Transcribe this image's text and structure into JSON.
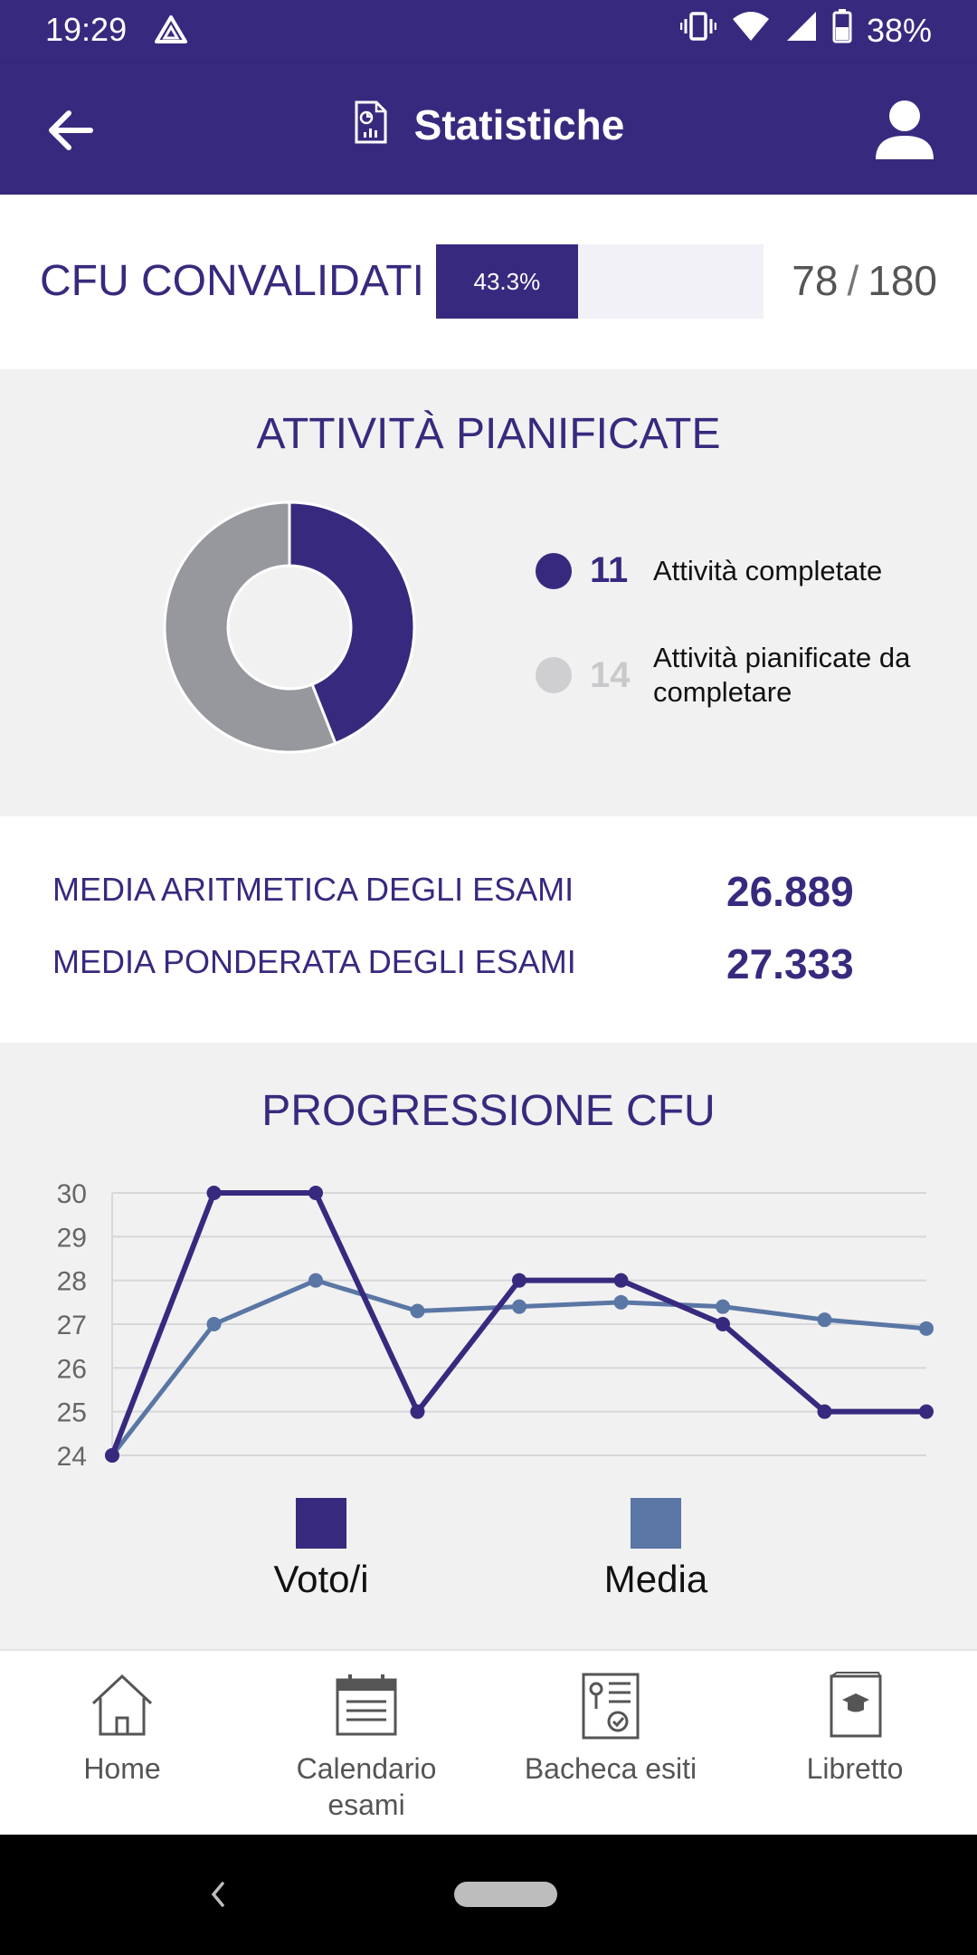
{
  "status_bar": {
    "time": "19:29",
    "battery": "38%",
    "icons": [
      "drive-icon",
      "vibrate-icon",
      "wifi-icon",
      "signal-icon",
      "battery-icon"
    ]
  },
  "app_bar": {
    "title": "Statistiche",
    "back_icon": "arrow-left-icon",
    "title_icon": "report-icon",
    "user_icon": "user-icon"
  },
  "cfu": {
    "label": "CFU CONVALIDATI",
    "percent_label": "43.3%",
    "progress_fraction": 0.433,
    "completed": "78",
    "separator": "/",
    "total": "180"
  },
  "activities": {
    "title": "ATTIVITÀ PIANIFICATE",
    "completed_count": "11",
    "completed_label": "Attività completate",
    "remaining_count": "14",
    "remaining_label": "Attività pianificate da completare",
    "completed_value": 11,
    "remaining_value": 14,
    "completed_color": "#372a7e",
    "remaining_color": "#96989e"
  },
  "averages": {
    "arithmetic_label": "MEDIA ARITMETICA DEGLI ESAMI",
    "arithmetic_value": "26.889",
    "weighted_label": "MEDIA PONDERATA DEGLI ESAMI",
    "weighted_value": "27.333"
  },
  "progression": {
    "title": "PROGRESSIONE CFU"
  },
  "chart_data": {
    "type": "line",
    "title": "PROGRESSIONE CFU",
    "x": [
      1,
      2,
      3,
      4,
      5,
      6,
      7,
      8,
      9
    ],
    "ylim": [
      24,
      30
    ],
    "yticks": [
      "30",
      "29",
      "28",
      "27",
      "26",
      "25",
      "24"
    ],
    "grid": true,
    "legend_position": "bottom",
    "series": [
      {
        "name": "Voto/i",
        "color": "#372a7e",
        "values": [
          24,
          30,
          30,
          25,
          28,
          28,
          27,
          25,
          25
        ]
      },
      {
        "name": "Media",
        "color": "#5a76a4",
        "values": [
          24,
          27,
          28,
          27.3,
          27.4,
          27.5,
          27.4,
          27.1,
          26.9
        ]
      }
    ]
  },
  "bottom_nav": {
    "items": [
      {
        "label": "Home",
        "icon": "home-icon"
      },
      {
        "label": "Calendario esami",
        "icon": "calendar-icon"
      },
      {
        "label": "Bacheca esiti",
        "icon": "results-board-icon"
      },
      {
        "label": "Libretto",
        "icon": "booklet-icon"
      }
    ]
  }
}
